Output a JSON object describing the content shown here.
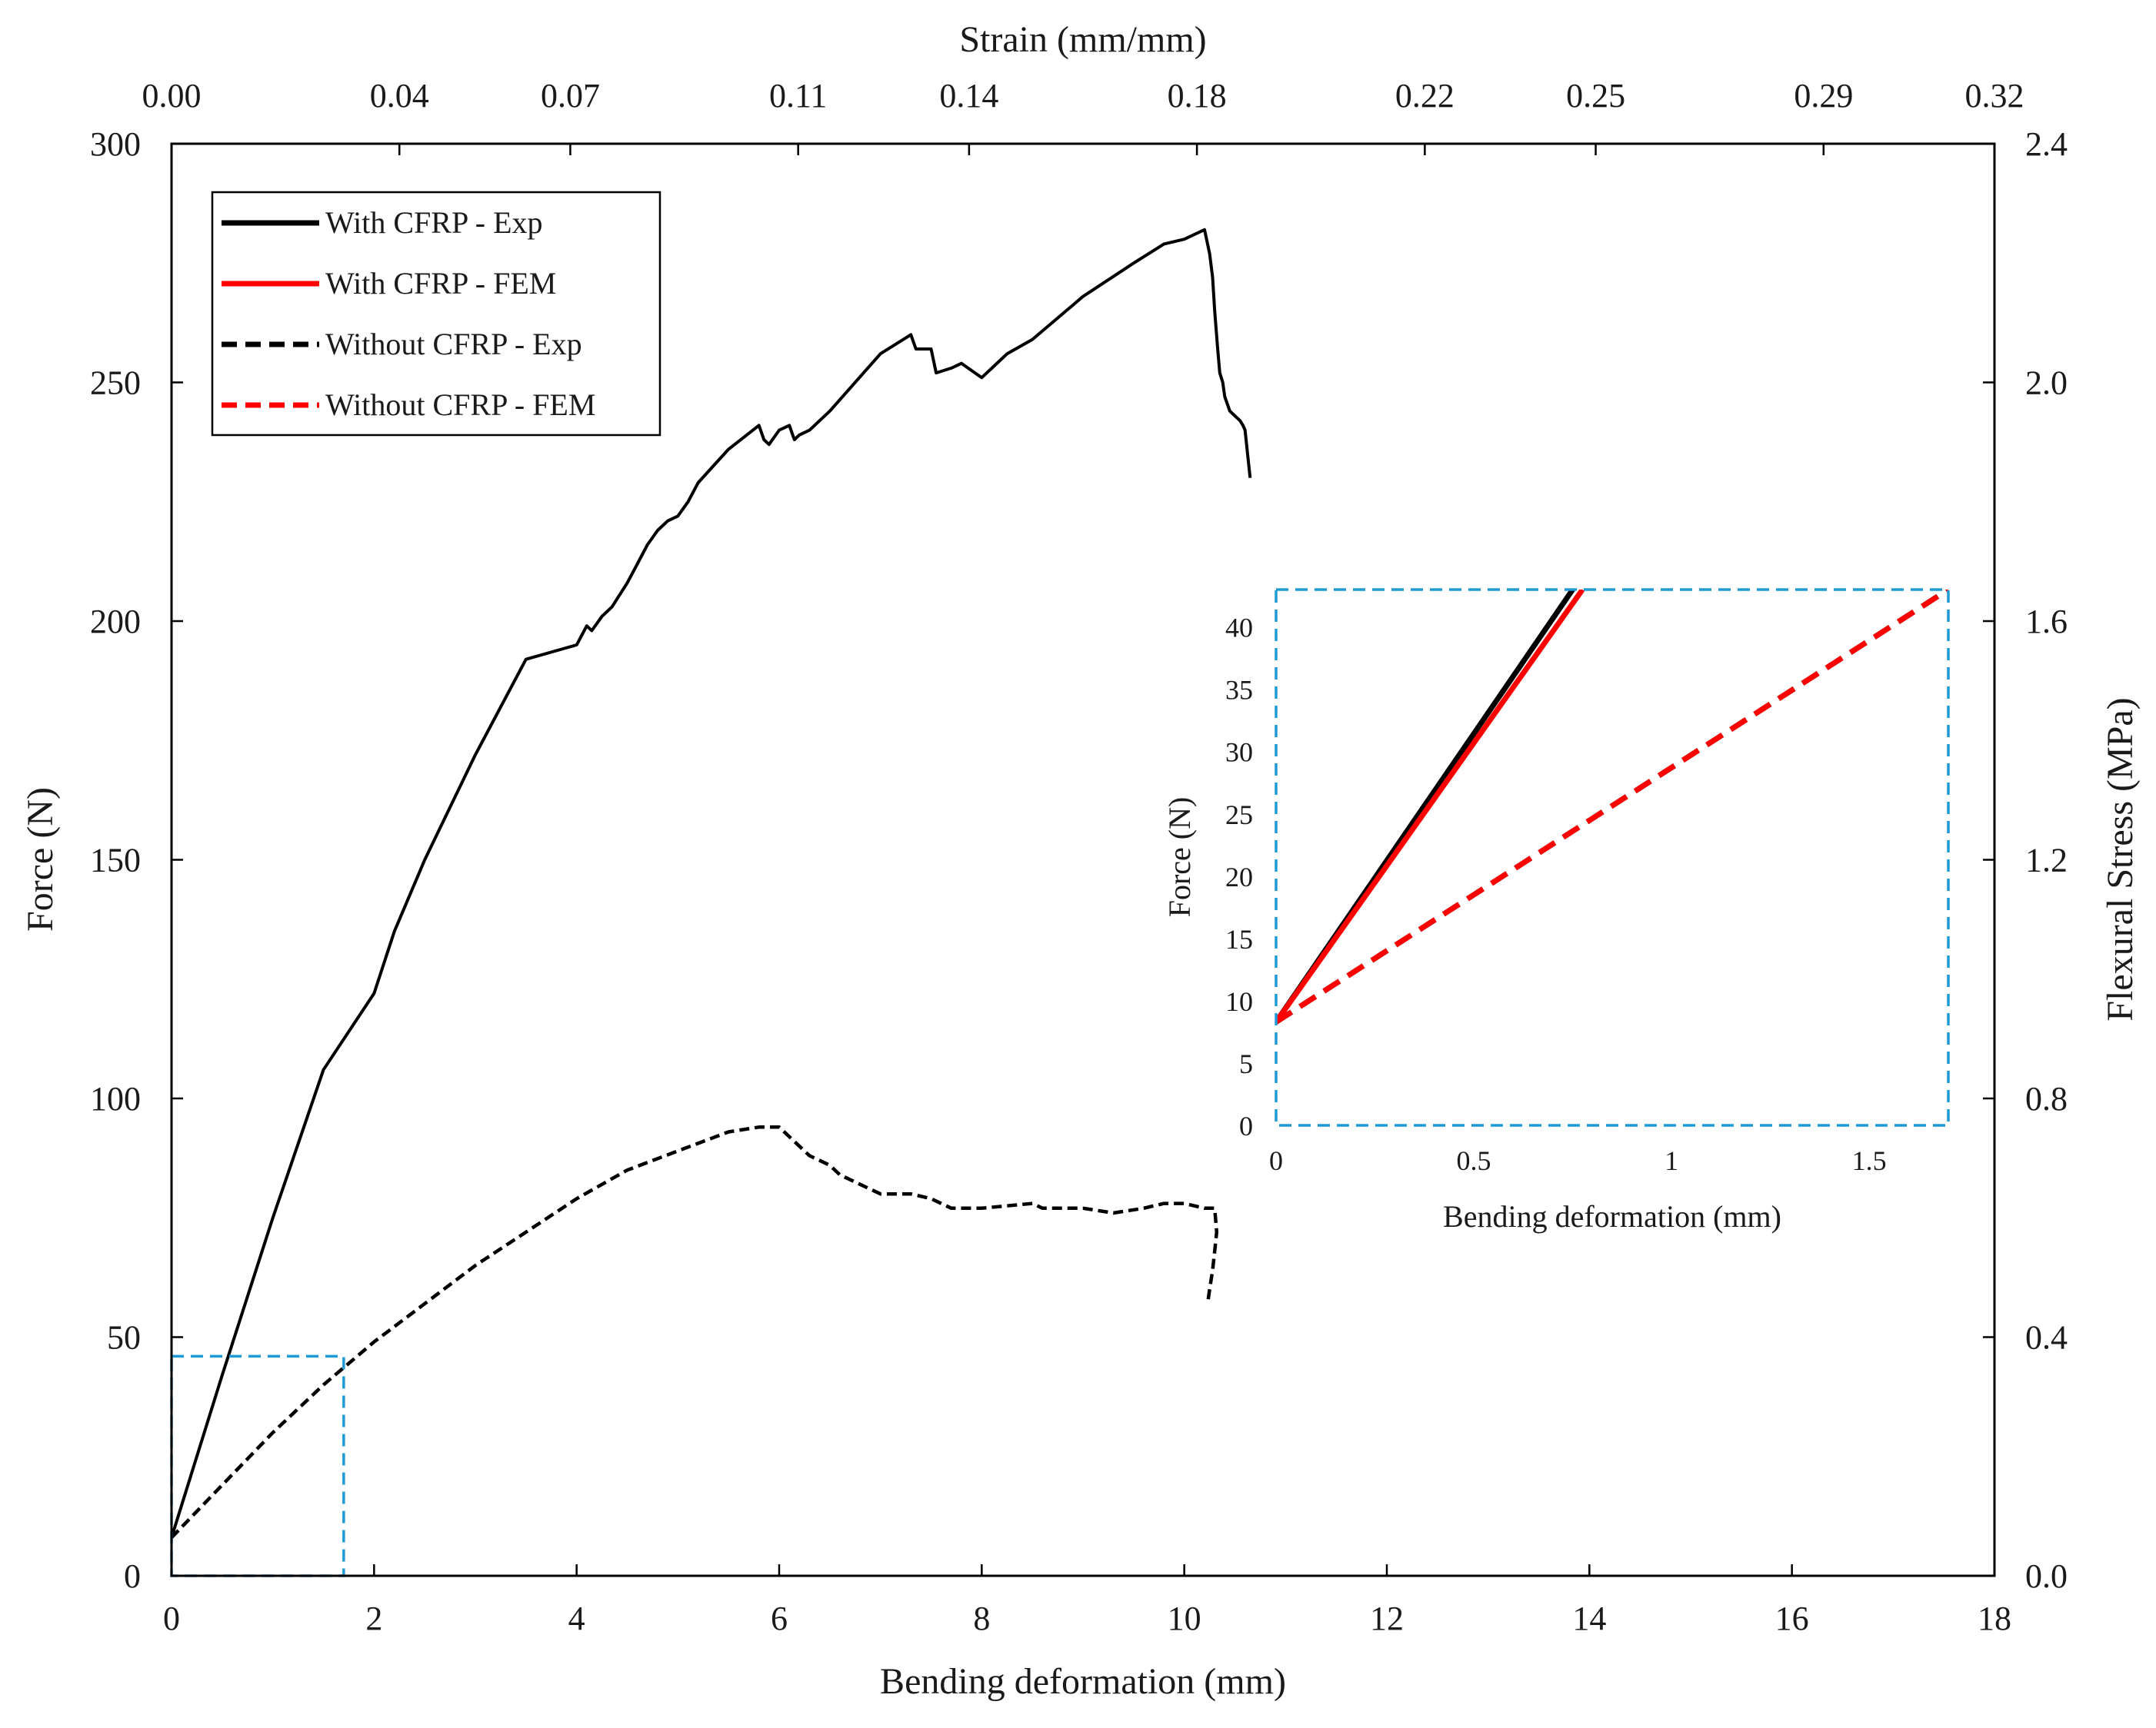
{
  "chart_data": {
    "type": "line",
    "main": {
      "xlabel": "Bending deformation (mm)",
      "ylabel": "Force (N)",
      "x2label": "Strain (mm/mm)",
      "y2label": "Flexural Stress (MPa)",
      "xlim": [
        0,
        18
      ],
      "ylim": [
        0,
        300
      ],
      "x2lim": [
        0,
        0.32
      ],
      "y2lim": [
        0,
        2.4
      ],
      "x_ticks": [
        0,
        2,
        4,
        6,
        8,
        10,
        12,
        14,
        16,
        18
      ],
      "x_tick_labels": [
        "0",
        "2",
        "4",
        "6",
        "8",
        "10",
        "12",
        "14",
        "16",
        "18"
      ],
      "y_ticks": [
        0,
        50,
        100,
        150,
        200,
        250,
        300
      ],
      "y_tick_labels": [
        "0",
        "50",
        "100",
        "150",
        "200",
        "250",
        "300"
      ],
      "x2_ticks": [
        0,
        0.04,
        0.07,
        0.11,
        0.14,
        0.18,
        0.22,
        0.25,
        0.29,
        0.32
      ],
      "x2_tick_labels": [
        "0.00",
        "0.04",
        "0.07",
        "0.11",
        "0.14",
        "0.18",
        "0.22",
        "0.25",
        "0.29",
        "0.32"
      ],
      "y2_ticks": [
        0,
        0.4,
        0.8,
        1.2,
        1.6,
        2.0,
        2.4
      ],
      "y2_tick_labels": [
        "0.0",
        "0.4",
        "0.8",
        "1.2",
        "1.6",
        "2.0",
        "2.4"
      ],
      "zoom_region": {
        "x": [
          0,
          1.7
        ],
        "y": [
          0,
          46
        ]
      },
      "legend_position": "top-left",
      "legend": [
        {
          "label": "With CFRP - Exp",
          "color": "#000000",
          "dash": "solid"
        },
        {
          "label": "With CFRP - FEM",
          "color": "#ff0000",
          "dash": "solid"
        },
        {
          "label": "Without CFRP - Exp",
          "color": "#000000",
          "dash": "dashed"
        },
        {
          "label": "Without CFRP - FEM",
          "color": "#ff0000",
          "dash": "dashed"
        }
      ],
      "series": [
        {
          "name": "With CFRP - Exp",
          "color": "#000000",
          "dash": "solid",
          "x": [
            0,
            0.5,
            1.0,
            1.5,
            2.0,
            2.2,
            2.5,
            3.0,
            3.5,
            4.0,
            4.1,
            4.15,
            4.25,
            4.35,
            4.5,
            4.6,
            4.7,
            4.8,
            4.9,
            5.0,
            5.1,
            5.2,
            5.5,
            5.8,
            5.85,
            5.9,
            6.0,
            6.1,
            6.15,
            6.2,
            6.3,
            6.5,
            7.0,
            7.3,
            7.35,
            7.5,
            7.55,
            7.7,
            7.8,
            8.0,
            8.2,
            8.25,
            8.5,
            9.0,
            9.5,
            9.8,
            10.0,
            10.2,
            10.25,
            10.28,
            10.3,
            10.33,
            10.35,
            10.38,
            10.4,
            10.45,
            10.5,
            10.55,
            10.58,
            10.6,
            10.62,
            10.65
          ],
          "y": [
            8,
            42,
            75,
            106,
            122,
            135,
            150,
            172,
            192,
            195,
            199,
            198,
            201,
            203,
            208,
            212,
            216,
            219,
            221,
            222,
            225,
            229,
            236,
            241,
            238,
            237,
            240,
            241,
            238,
            239,
            240,
            244,
            256,
            260,
            257,
            257,
            252,
            253,
            254,
            251,
            255,
            256,
            259,
            268,
            275,
            279,
            280,
            282,
            277,
            272,
            265,
            257,
            252,
            250,
            247,
            244,
            243,
            242,
            241,
            240,
            236,
            230
          ]
        },
        {
          "name": "Without CFRP - Exp",
          "color": "#000000",
          "dash": "dashed",
          "x": [
            0,
            0.5,
            1.0,
            1.5,
            2.0,
            2.5,
            3.0,
            3.5,
            4.0,
            4.5,
            5.0,
            5.5,
            5.8,
            6.0,
            6.2,
            6.3,
            6.4,
            6.5,
            6.6,
            6.8,
            7.0,
            7.3,
            7.5,
            7.7,
            8.0,
            8.5,
            8.6,
            9.0,
            9.3,
            9.6,
            9.8,
            10.0,
            10.2,
            10.3,
            10.32,
            10.3,
            10.28,
            10.25,
            10.23
          ],
          "y": [
            8,
            19,
            30,
            40,
            49,
            57,
            65,
            72,
            79,
            85,
            89,
            93,
            94,
            94,
            90,
            88,
            87,
            86,
            84,
            82,
            80,
            80,
            79,
            77,
            77,
            78,
            77,
            77,
            76,
            77,
            78,
            78,
            77,
            77,
            72,
            68,
            64,
            60,
            57
          ]
        }
      ]
    },
    "inset": {
      "xlabel": "Bending deformation (mm)",
      "ylabel": "Force (N)",
      "xlim": [
        0,
        1.7
      ],
      "ylim": [
        0,
        43
      ],
      "x_ticks": [
        0,
        0.5,
        1,
        1.5
      ],
      "x_tick_labels": [
        "0",
        "0.5",
        "1",
        "1.5"
      ],
      "y_ticks": [
        0,
        5,
        10,
        15,
        20,
        25,
        30,
        35,
        40
      ],
      "y_tick_labels": [
        "0",
        "5",
        "10",
        "15",
        "20",
        "25",
        "30",
        "35",
        "40"
      ],
      "series": [
        {
          "name": "Without CFRP - Exp",
          "color": "#000000",
          "dash": "dashed",
          "x": [
            0,
            1.7
          ],
          "y": [
            8.3,
            43
          ]
        },
        {
          "name": "Without CFRP - FEM",
          "color": "#ff0000",
          "dash": "dashed",
          "x": [
            0,
            1.7
          ],
          "y": [
            8.3,
            43
          ]
        },
        {
          "name": "With CFRP - Exp",
          "color": "#000000",
          "dash": "solid",
          "x": [
            0,
            0.75
          ],
          "y": [
            8.3,
            43
          ]
        },
        {
          "name": "With CFRP - FEM",
          "color": "#ff0000",
          "dash": "solid",
          "x": [
            0,
            0.775
          ],
          "y": [
            8.3,
            43
          ]
        }
      ]
    },
    "frame_color": "#000000",
    "zoom_box_color": "#1e9bd7"
  }
}
